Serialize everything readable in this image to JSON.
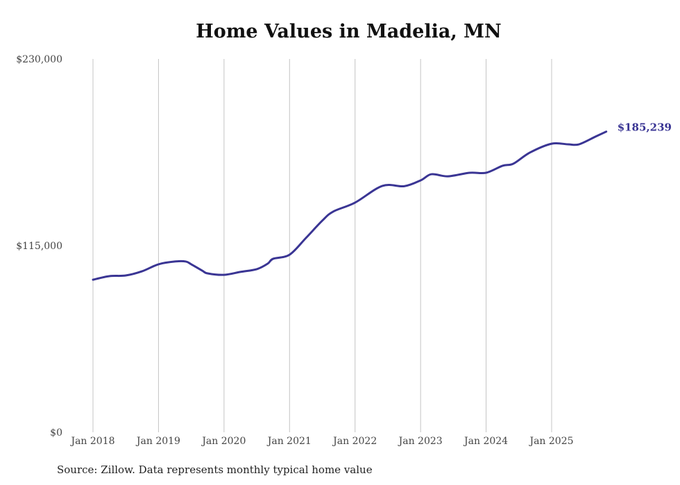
{
  "chart_data": {
    "type": "line",
    "title": "Home Values in Madelia, MN",
    "xlabel": "",
    "ylabel": "",
    "ylim": [
      0,
      230000
    ],
    "y_ticks": [
      0,
      115000,
      230000
    ],
    "y_tick_labels": [
      "$0",
      "$115,000",
      "$230,000"
    ],
    "x_ticks": [
      "2018-01",
      "2019-01",
      "2020-01",
      "2021-01",
      "2022-01",
      "2023-01",
      "2024-01",
      "2025-01"
    ],
    "x_tick_labels": [
      "Jan 2018",
      "Jan 2019",
      "Jan 2020",
      "Jan 2021",
      "Jan 2022",
      "Jan 2023",
      "Jan 2024",
      "Jan 2025"
    ],
    "grid": "vertical",
    "series": [
      {
        "name": "Typical home value",
        "color": "#3a3594",
        "x": [
          "2018-01",
          "2018-04",
          "2018-07",
          "2018-10",
          "2019-01",
          "2019-04",
          "2019-06",
          "2019-07",
          "2019-09",
          "2019-10",
          "2020-01",
          "2020-04",
          "2020-07",
          "2020-09",
          "2020-10",
          "2021-01",
          "2021-04",
          "2021-07",
          "2021-09",
          "2022-01",
          "2022-06",
          "2022-10",
          "2023-01",
          "2023-03",
          "2023-06",
          "2023-10",
          "2024-01",
          "2024-04",
          "2024-06",
          "2024-09",
          "2025-01",
          "2025-04",
          "2025-06",
          "2025-09",
          "2025-11"
        ],
        "values": [
          94000,
          96200,
          96600,
          99200,
          103500,
          105200,
          105200,
          103500,
          99600,
          97900,
          97000,
          98800,
          100500,
          103900,
          106900,
          109400,
          119700,
          130400,
          136000,
          141500,
          151800,
          151600,
          155200,
          159000,
          157700,
          159900,
          159900,
          164200,
          165500,
          172300,
          177800,
          177400,
          177400,
          182100,
          185239
        ]
      }
    ],
    "end_label": "$185,239"
  },
  "source": "Source: Zillow. Data represents monthly typical home value"
}
